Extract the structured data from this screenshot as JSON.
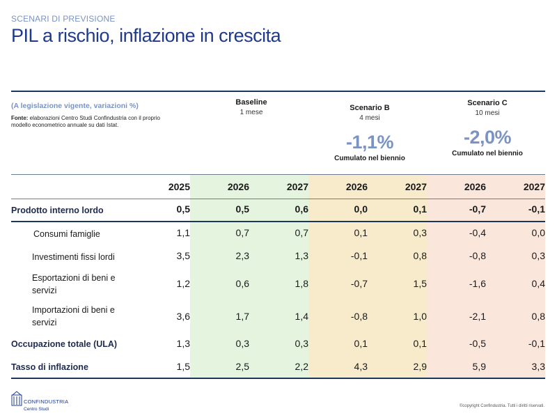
{
  "header": {
    "kicker": "SCENARI DI PREVISIONE",
    "title": "PIL a rischio, inflazione in crescita"
  },
  "legend": {
    "title": "(A legislazione vigente, variazioni %)",
    "source_label": "Fonte:",
    "source_text": "elaborazioni Centro Studi Confindustria con il proprio modello econometrico annuale su dati Istat."
  },
  "scenarios": {
    "baseline": {
      "name": "Baseline",
      "duration": "1 mese"
    },
    "b": {
      "name": "Scenario B",
      "duration": "4 mesi",
      "cumulative": "-1,1%",
      "cumulative_label": "Cumulato nel biennio"
    },
    "c": {
      "name": "Scenario C",
      "duration": "10 mesi",
      "cumulative": "-2,0%",
      "cumulative_label": "Cumulato nel biennio"
    }
  },
  "colors": {
    "baseline_band": "#e5f4df",
    "scenario_b_band": "#f7ebcc",
    "scenario_c_band": "#fbe6dc",
    "accent": "#7a93c4",
    "title": "#1f3a8a"
  },
  "table": {
    "years": [
      "2025",
      "2026",
      "2027",
      "2026",
      "2027",
      "2026",
      "2027"
    ],
    "rows": [
      {
        "label": "Prodotto interno lordo",
        "values": [
          "0,5",
          "0,5",
          "0,6",
          "0,0",
          "0,1",
          "-0,7",
          "-0,1"
        ]
      },
      {
        "label": "Consumi famiglie",
        "values": [
          "1,1",
          "0,7",
          "0,7",
          "0,1",
          "0,3",
          "-0,4",
          "0,0"
        ]
      },
      {
        "label": "Investimenti fissi lordi",
        "values": [
          "3,5",
          "2,3",
          "1,3",
          "-0,1",
          "0,8",
          "-0,8",
          "0,3"
        ]
      },
      {
        "label_line1": "Esportazioni di beni e",
        "label_line2": "servizi",
        "values": [
          "1,2",
          "0,6",
          "1,8",
          "-0,7",
          "1,5",
          "-1,6",
          "0,4"
        ]
      },
      {
        "label_line1": "Importazioni di beni e",
        "label_line2": "servizi",
        "values": [
          "3,6",
          "1,7",
          "1,4",
          "-0,8",
          "1,0",
          "-2,1",
          "0,8"
        ]
      },
      {
        "label": "Occupazione totale (ULA)",
        "values": [
          "1,3",
          "0,3",
          "0,3",
          "0,1",
          "0,1",
          "-0,5",
          "-0,1"
        ]
      },
      {
        "label": "Tasso di inflazione",
        "values": [
          "1,5",
          "2,5",
          "2,2",
          "4,3",
          "2,9",
          "5,9",
          "3,3"
        ]
      }
    ]
  },
  "footer": {
    "logo_name": "CONFINDUSTRIA",
    "logo_sub": "Centro Studi",
    "logo_icon": "confindustria-logo-icon",
    "copyright": "©copyright Confindustria. Tutti i diritti riservati."
  }
}
